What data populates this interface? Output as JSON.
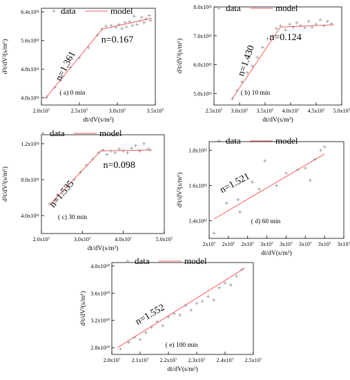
{
  "legend": {
    "data": "data",
    "model": "model"
  },
  "colors": {
    "model": "#ff5b5b",
    "data": "#909090"
  },
  "chart_data": [
    {
      "id": "a",
      "type": "scatter",
      "caption": "(   a)   0 min",
      "xlabel": "dt/dV(s/m³)",
      "ylabel": "d²t/dV²(s/m⁶)",
      "xlim": [
        20000000.0,
        35000000.0
      ],
      "ylim": [
        380000000000.0,
        650000000000.0
      ],
      "xticks": [
        20000000.0,
        25000000.0,
        30000000.0,
        35000000.0
      ],
      "xtick_labels": [
        "2.0x10⁷",
        "2.5x10⁷",
        "3.0x10⁷",
        "3.5x10⁷"
      ],
      "yticks": [
        400000000000.0,
        480000000000.0,
        560000000000.0,
        640000000000.0
      ],
      "ytick_labels": [
        "4.0x10¹¹",
        "4.8x10¹¹",
        "5.6x10¹¹",
        "6.4x10¹¹"
      ],
      "annotations": [
        {
          "text": "n=1.361",
          "x": 23500000.0,
          "y": 485000000000.0,
          "rotate": -62
        },
        {
          "text": "n=0.167",
          "x": 30000000.0,
          "y": 555000000000.0,
          "rotate": 0
        }
      ],
      "model": [
        [
          20500000.0,
          398000000000.0
        ],
        [
          28000000.0,
          592000000000.0
        ],
        [
          34500000.0,
          622000000000.0
        ]
      ],
      "data": [
        [
          20700000.0,
          402000000000.0
        ],
        [
          21800000.0,
          430000000000.0
        ],
        [
          22800000.0,
          460000000000.0
        ],
        [
          23800000.0,
          485000000000.0
        ],
        [
          25000000.0,
          512000000000.0
        ],
        [
          26200000.0,
          540000000000.0
        ],
        [
          27400000.0,
          575000000000.0
        ],
        [
          28000000.0,
          592000000000.0
        ],
        [
          28500000.0,
          600000000000.0
        ],
        [
          29200000.0,
          602000000000.0
        ],
        [
          29800000.0,
          597000000000.0
        ],
        [
          30200000.0,
          605000000000.0
        ],
        [
          30600000.0,
          593000000000.0
        ],
        [
          31000000.0,
          610000000000.0
        ],
        [
          31200000.0,
          598000000000.0
        ],
        [
          31600000.0,
          612000000000.0
        ],
        [
          32000000.0,
          602000000000.0
        ],
        [
          32200000.0,
          628000000000.0
        ],
        [
          32600000.0,
          605000000000.0
        ],
        [
          33000000.0,
          615000000000.0
        ],
        [
          33200000.0,
          625000000000.0
        ],
        [
          33500000.0,
          610000000000.0
        ],
        [
          33800000.0,
          620000000000.0
        ],
        [
          34200000.0,
          630000000000.0
        ],
        [
          34400000.0,
          616000000000.0
        ]
      ]
    },
    {
      "id": "b",
      "type": "scatter",
      "caption": "(   b)   10 min",
      "xlabel": "dt/dV(s/m³)",
      "ylabel": "d²t/dV²(s/m⁶)",
      "xlim": [
        25000000.0,
        50000000.0
      ],
      "ylim": [
        460000000000.0,
        800000000000.0
      ],
      "xticks": [
        25000000.0,
        30000000.0,
        35000000.0,
        40000000.0,
        45000000.0,
        50000000.0
      ],
      "xtick_labels": [
        "2.5x10⁷",
        "3.0x10⁷",
        "3.5x10⁷",
        "4.0x10⁷",
        "4.5x10⁷",
        "5.0x10⁷"
      ],
      "yticks": [
        500000000000.0,
        600000000000.0,
        700000000000.0,
        800000000000.0
      ],
      "ytick_labels": [
        "5.0x10¹¹",
        "6.0x10¹¹",
        "7.0x10¹¹",
        "8.0x10¹¹"
      ],
      "annotations": [
        {
          "text": "n=1.430",
          "x": 31800000.0,
          "y": 610000000000.0,
          "rotate": -70
        },
        {
          "text": "n=0.124",
          "x": 39000000.0,
          "y": 685000000000.0,
          "rotate": 0
        }
      ],
      "model": [
        [
          28500000.0,
          480000000000.0
        ],
        [
          38000000.0,
          730000000000.0
        ],
        [
          48500000.0,
          738000000000.0
        ]
      ],
      "data": [
        [
          28600000.0,
          482000000000.0
        ],
        [
          29500000.0,
          510000000000.0
        ],
        [
          30500000.0,
          540000000000.0
        ],
        [
          31500000.0,
          572000000000.0
        ],
        [
          32500000.0,
          595000000000.0
        ],
        [
          33500000.0,
          625000000000.0
        ],
        [
          34500000.0,
          660000000000.0
        ],
        [
          35500000.0,
          690000000000.0
        ],
        [
          36500000.0,
          700000000000.0
        ],
        [
          37200000.0,
          725000000000.0
        ],
        [
          38000000.0,
          735000000000.0
        ],
        [
          39000000.0,
          720000000000.0
        ],
        [
          39800000.0,
          740000000000.0
        ],
        [
          40500000.0,
          730000000000.0
        ],
        [
          41200000.0,
          745000000000.0
        ],
        [
          42000000.0,
          735000000000.0
        ],
        [
          42800000.0,
          728000000000.0
        ],
        [
          43500000.0,
          750000000000.0
        ],
        [
          44200000.0,
          730000000000.0
        ],
        [
          45000000.0,
          740000000000.0
        ],
        [
          45800000.0,
          755000000000.0
        ],
        [
          46500000.0,
          735000000000.0
        ],
        [
          47200000.0,
          750000000000.0
        ],
        [
          48000000.0,
          742000000000.0
        ]
      ]
    },
    {
      "id": "c",
      "type": "scatter",
      "caption": "(   c)   30 min",
      "xlabel": "dt/dV(s/m³)",
      "ylabel": "d²t/dV²(s/m⁶)",
      "xlim": [
        20000000.0,
        50000000.0
      ],
      "ylim": [
        200000000000.0,
        1300000000000.0
      ],
      "xticks": [
        20000000.0,
        30000000.0,
        40000000.0,
        50000000.0
      ],
      "xtick_labels": [
        "2.0x10⁷",
        "3.0x10⁷",
        "4.0x10⁷",
        "5.0x10⁷"
      ],
      "yticks": [
        400000000000.0,
        800000000000.0,
        1200000000000.0
      ],
      "ytick_labels": [
        "4.0x10¹¹",
        "8.0x10¹¹",
        "1.2x10¹²"
      ],
      "annotations": [
        {
          "text": "n=1.535",
          "x": 25500000.0,
          "y": 620000000000.0,
          "rotate": -50
        },
        {
          "text": "n=0.098",
          "x": 39000000.0,
          "y": 930000000000.0,
          "rotate": 0
        }
      ],
      "model": [
        [
          22000000.0,
          520000000000.0
        ],
        [
          34500000.0,
          1120000000000.0
        ],
        [
          47000000.0,
          1130000000000.0
        ]
      ],
      "data": [
        [
          22000000.0,
          530000000000.0
        ],
        [
          23500000.0,
          580000000000.0
        ],
        [
          25000000.0,
          650000000000.0
        ],
        [
          26500000.0,
          730000000000.0
        ],
        [
          28000000.0,
          800000000000.0
        ],
        [
          29500000.0,
          880000000000.0
        ],
        [
          31000000.0,
          960000000000.0
        ],
        [
          32500000.0,
          1030000000000.0
        ],
        [
          34000000.0,
          1100000000000.0
        ],
        [
          35000000.0,
          1130000000000.0
        ],
        [
          36000000.0,
          1080000000000.0
        ],
        [
          37000000.0,
          1120000000000.0
        ],
        [
          38000000.0,
          1100000000000.0
        ],
        [
          39000000.0,
          1140000000000.0
        ],
        [
          40000000.0,
          1120000000000.0
        ],
        [
          41000000.0,
          1100000000000.0
        ],
        [
          42000000.0,
          1150000000000.0
        ],
        [
          43000000.0,
          1180000000000.0
        ],
        [
          44000000.0,
          1120000000000.0
        ],
        [
          45000000.0,
          1200000000000.0
        ],
        [
          46000000.0,
          1140000000000.0
        ],
        [
          46500000.0,
          1130000000000.0
        ]
      ]
    },
    {
      "id": "d",
      "type": "scatter",
      "caption": "(   d)   60 min",
      "xlabel": "dt/dV(s/m³)",
      "ylabel": "d²t/dV²(s/m⁶)",
      "xlim": [
        20000000.0,
        34000000.0
      ],
      "ylim": [
        130000000000.0,
        185000000000.0
      ],
      "xticks": [
        20000000.0,
        24000000.0,
        28000000.0,
        32000000.0
      ],
      "xtick_labels": [
        "2x10⁷",
        "2x10⁷",
        "3x10⁷",
        "3x10⁷"
      ],
      "extra_xticks": [
        22000000.0,
        26000000.0,
        30000000.0,
        34000000.0
      ],
      "extra_xtick_labels": [
        "2x10⁷",
        "3x10⁷",
        "3x10⁷",
        "3x10⁷"
      ],
      "yticks": [
        140000000000.0,
        160000000000.0,
        180000000000.0
      ],
      "ytick_labels": [
        "1.4x10¹¹",
        "1.6x10¹¹",
        "1.8x10¹¹"
      ],
      "annotations": [
        {
          "text": "n=1.521",
          "x": 22800000.0,
          "y": 160000000000.0,
          "rotate": -28
        }
      ],
      "model": [
        [
          20500000.0,
          141000000000.0
        ],
        [
          32000000.0,
          178000000000.0
        ]
      ],
      "data": [
        [
          20500000.0,
          133000000000.0
        ],
        [
          21800000.0,
          150000000000.0
        ],
        [
          23000000.0,
          152000000000.0
        ],
        [
          23200000.0,
          145000000000.0
        ],
        [
          24500000.0,
          162000000000.0
        ],
        [
          25200000.0,
          158000000000.0
        ],
        [
          25800000.0,
          174000000000.0
        ],
        [
          27000000.0,
          160000000000.0
        ],
        [
          28000000.0,
          167000000000.0
        ],
        [
          29200000.0,
          169000000000.0
        ],
        [
          30000000.0,
          170000000000.0
        ],
        [
          30500000.0,
          163000000000.0
        ],
        [
          31000000.0,
          175000000000.0
        ],
        [
          31600000.0,
          180000000000.0
        ],
        [
          32000000.0,
          182000000000.0
        ]
      ]
    },
    {
      "id": "e",
      "type": "scatter",
      "caption": "(   e)   100 min",
      "xlabel": "dt/dV(s/m³)",
      "ylabel": "d²t/dV²(s/m⁶)",
      "xlim": [
        20000000.0,
        25000000.0
      ],
      "ylim": [
        27000000000.0,
        40500000000.0
      ],
      "xticks": [
        20000000.0,
        21000000.0,
        22000000.0,
        23000000.0,
        24000000.0,
        25000000.0
      ],
      "xtick_labels": [
        "2.0x10⁷",
        "2.1x10⁷",
        "2.2x10⁷",
        "2.3x10⁷",
        "2.4x10⁷",
        "2.5x10⁷"
      ],
      "yticks": [
        28000000000.0,
        32000000000.0,
        36000000000.0,
        40000000000.0
      ],
      "ytick_labels": [
        "2.8x10¹⁰",
        "3.2x10¹⁰",
        "3.6x10¹⁰",
        "4.0x10¹⁰"
      ],
      "annotations": [
        {
          "text": "n=1.552",
          "x": 21400000.0,
          "y": 32500000000.0,
          "rotate": -30
        }
      ],
      "model": [
        [
          20200000.0,
          28000000000.0
        ],
        [
          24700000.0,
          39700000000.0
        ]
      ],
      "data": [
        [
          20300000.0,
          27800000000.0
        ],
        [
          20600000.0,
          28800000000.0
        ],
        [
          20800000.0,
          29500000000.0
        ],
        [
          21000000.0,
          29200000000.0
        ],
        [
          21200000.0,
          30200000000.0
        ],
        [
          21400000.0,
          31000000000.0
        ],
        [
          21600000.0,
          31800000000.0
        ],
        [
          21800000.0,
          31200000000.0
        ],
        [
          22000000.0,
          32500000000.0
        ],
        [
          22200000.0,
          33000000000.0
        ],
        [
          22400000.0,
          32800000000.0
        ],
        [
          22600000.0,
          34200000000.0
        ],
        [
          22800000.0,
          33500000000.0
        ],
        [
          23000000.0,
          34500000000.0
        ],
        [
          23200000.0,
          34800000000.0
        ],
        [
          23400000.0,
          35500000000.0
        ],
        [
          23600000.0,
          35000000000.0
        ],
        [
          23800000.0,
          36800000000.0
        ],
        [
          24000000.0,
          37500000000.0
        ],
        [
          24200000.0,
          37200000000.0
        ],
        [
          24400000.0,
          38500000000.0
        ],
        [
          24600000.0,
          39500000000.0
        ]
      ]
    }
  ]
}
